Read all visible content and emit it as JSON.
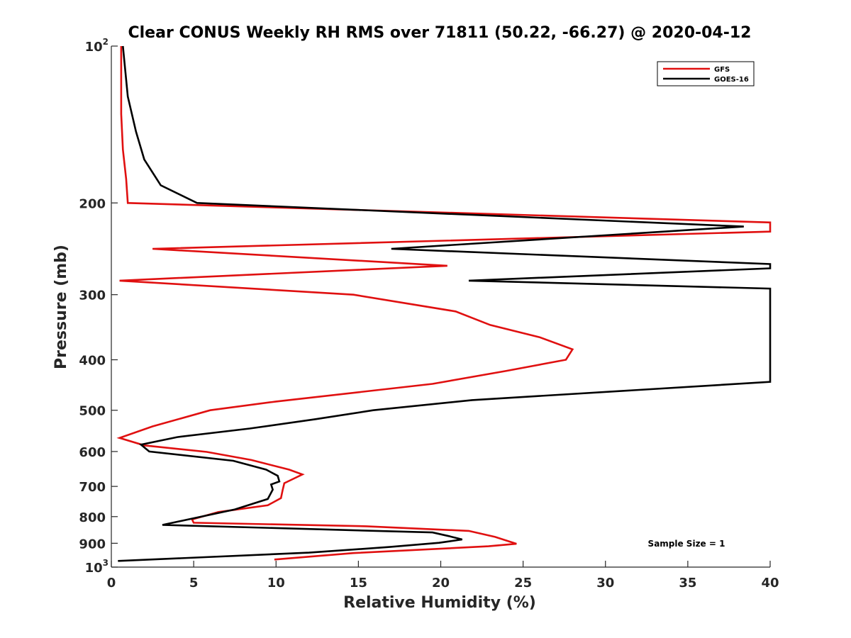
{
  "chart_data": {
    "type": "line",
    "title": "Clear CONUS Weekly RH RMS over 71811 (50.22, -66.27) @ 2020-04-12",
    "xlabel": "Relative Humidity (%)",
    "ylabel": "Pressure (mb)",
    "xlim": [
      0,
      40
    ],
    "ylim": [
      100,
      1000
    ],
    "y_scale": "log",
    "y_reversed": true,
    "grid": false,
    "legend_position": "top-right",
    "x_ticks": [
      0,
      5,
      10,
      15,
      20,
      25,
      30,
      35,
      40
    ],
    "x_tick_labels": [
      "0",
      "5",
      "10",
      "15",
      "20",
      "25",
      "30",
      "35",
      "40"
    ],
    "y_ticks": [
      100,
      200,
      300,
      400,
      500,
      600,
      700,
      800,
      900,
      1000
    ],
    "y_tick_labels": [
      {
        "base": "10",
        "exp": "2"
      },
      {
        "base": "200",
        "exp": ""
      },
      {
        "base": "300",
        "exp": ""
      },
      {
        "base": "400",
        "exp": ""
      },
      {
        "base": "500",
        "exp": ""
      },
      {
        "base": "600",
        "exp": ""
      },
      {
        "base": "700",
        "exp": ""
      },
      {
        "base": "800",
        "exp": ""
      },
      {
        "base": "900",
        "exp": ""
      },
      {
        "base": "10",
        "exp": "3"
      }
    ],
    "annotation": "Sample Size = 1",
    "series": [
      {
        "name": "GFS",
        "color": "#e01010",
        "points": [
          [
            0.6,
            100
          ],
          [
            0.6,
            115
          ],
          [
            0.6,
            135
          ],
          [
            0.7,
            158
          ],
          [
            0.9,
            180
          ],
          [
            1.0,
            200
          ],
          [
            40.0,
            218
          ],
          [
            40.0,
            227
          ],
          [
            2.5,
            245
          ],
          [
            20.4,
            264
          ],
          [
            0.5,
            282
          ],
          [
            14.7,
            300
          ],
          [
            20.9,
            323
          ],
          [
            23.0,
            343
          ],
          [
            26.0,
            362
          ],
          [
            28.0,
            382
          ],
          [
            27.6,
            400
          ],
          [
            24.0,
            420
          ],
          [
            19.5,
            445
          ],
          [
            10.0,
            481
          ],
          [
            6.0,
            500
          ],
          [
            2.5,
            537
          ],
          [
            0.5,
            565
          ],
          [
            2.0,
            584
          ],
          [
            5.8,
            601
          ],
          [
            8.5,
            623
          ],
          [
            10.8,
            650
          ],
          [
            11.6,
            664
          ],
          [
            11.0,
            678
          ],
          [
            10.5,
            690
          ],
          [
            10.4,
            712
          ],
          [
            10.3,
            737
          ],
          [
            9.5,
            761
          ],
          [
            6.5,
            784
          ],
          [
            4.9,
            810
          ],
          [
            5.0,
            822
          ],
          [
            15.5,
            835
          ],
          [
            21.7,
            852
          ],
          [
            23.3,
            875
          ],
          [
            24.6,
            902
          ],
          [
            22.9,
            912
          ],
          [
            14.7,
            940
          ],
          [
            9.9,
            967
          ]
        ]
      },
      {
        "name": "GOES-16",
        "color": "#000000",
        "points": [
          [
            0.7,
            100
          ],
          [
            1.0,
            125
          ],
          [
            1.5,
            146
          ],
          [
            2.0,
            165
          ],
          [
            3.0,
            185
          ],
          [
            5.2,
            200
          ],
          [
            38.4,
            222
          ],
          [
            17.0,
            245
          ],
          [
            40.0,
            262
          ],
          [
            40.0,
            267
          ],
          [
            21.7,
            282
          ],
          [
            40.0,
            292
          ],
          [
            40.0,
            441
          ],
          [
            21.9,
            478
          ],
          [
            15.9,
            500
          ],
          [
            12.4,
            520
          ],
          [
            8.4,
            542
          ],
          [
            4.0,
            563
          ],
          [
            1.8,
            582
          ],
          [
            2.3,
            600
          ],
          [
            7.4,
            625
          ],
          [
            9.4,
            650
          ],
          [
            10.1,
            668
          ],
          [
            10.2,
            685
          ],
          [
            9.7,
            694
          ],
          [
            9.8,
            710
          ],
          [
            9.5,
            740
          ],
          [
            7.5,
            775
          ],
          [
            3.1,
            830
          ],
          [
            19.5,
            858
          ],
          [
            20.5,
            872
          ],
          [
            21.3,
            885
          ],
          [
            19.9,
            898
          ],
          [
            16.9,
            915
          ],
          [
            12.0,
            938
          ],
          [
            0.4,
            973
          ]
        ]
      }
    ]
  }
}
